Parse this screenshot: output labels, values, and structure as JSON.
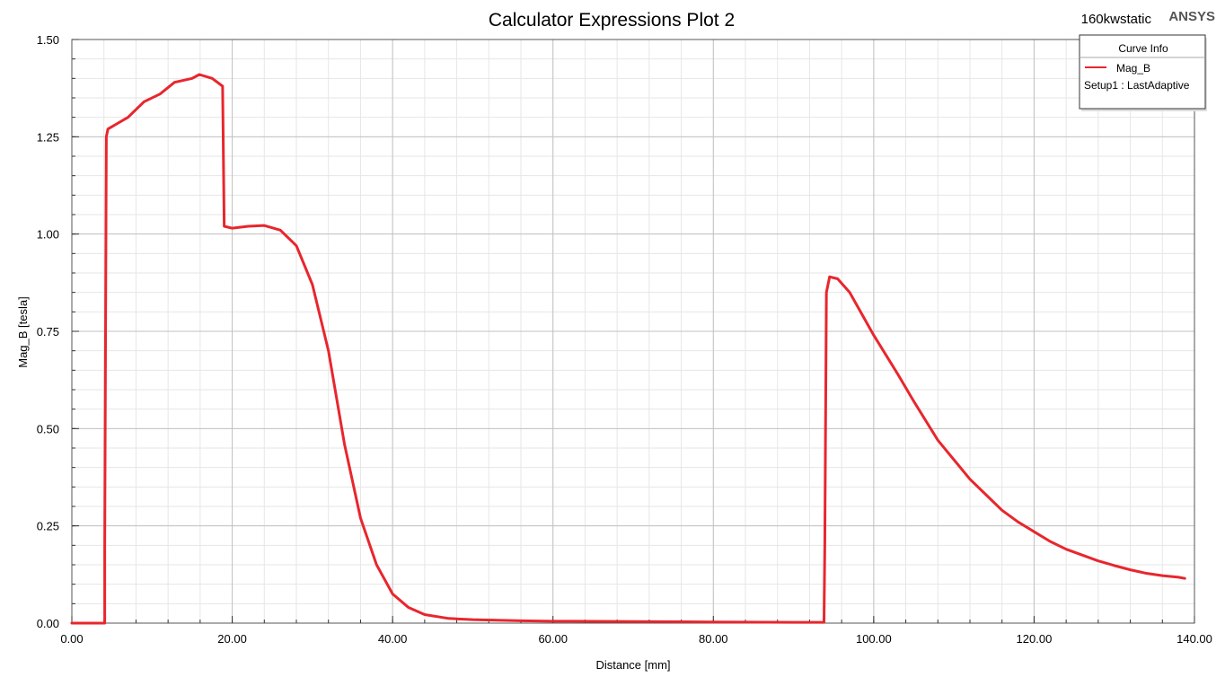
{
  "header": {
    "project_name": "160kwstatic",
    "brand": "ANSYS"
  },
  "legend": {
    "title": "Curve Info",
    "entries": [
      {
        "name": "Mag_B",
        "sub": "Setup1 : LastAdaptive",
        "color": "#e8262d"
      }
    ]
  },
  "chart_data": {
    "type": "line",
    "title": "Calculator Expressions Plot 2",
    "xlabel": "Distance [mm]",
    "ylabel": "Mag_B [tesla]",
    "xlim": [
      0,
      140
    ],
    "ylim": [
      0,
      1.5
    ],
    "x_ticks": [
      "0.00",
      "20.00",
      "40.00",
      "60.00",
      "80.00",
      "100.00",
      "120.00",
      "140.00"
    ],
    "y_ticks": [
      "0.00",
      "0.25",
      "0.50",
      "0.75",
      "1.00",
      "1.25",
      "1.50"
    ],
    "x_tick_values": [
      0,
      20,
      40,
      60,
      80,
      100,
      120,
      140
    ],
    "y_tick_values": [
      0,
      0.25,
      0.5,
      0.75,
      1.0,
      1.25,
      1.5
    ],
    "grid": true,
    "legend_position": "top-right",
    "series": [
      {
        "name": "Mag_B",
        "color": "#e8262d",
        "points": [
          [
            0,
            0
          ],
          [
            4.1,
            0
          ],
          [
            4.1,
            0.2
          ],
          [
            4.3,
            1.25
          ],
          [
            4.5,
            1.27
          ],
          [
            7,
            1.3
          ],
          [
            9,
            1.34
          ],
          [
            11,
            1.36
          ],
          [
            12.8,
            1.39
          ],
          [
            15,
            1.4
          ],
          [
            15.9,
            1.41
          ],
          [
            17.5,
            1.4
          ],
          [
            18.8,
            1.38
          ],
          [
            19.0,
            1.02
          ],
          [
            20,
            1.015
          ],
          [
            22,
            1.02
          ],
          [
            24,
            1.022
          ],
          [
            26,
            1.01
          ],
          [
            28,
            0.97
          ],
          [
            30,
            0.87
          ],
          [
            32,
            0.7
          ],
          [
            34,
            0.46
          ],
          [
            36,
            0.27
          ],
          [
            38,
            0.15
          ],
          [
            40,
            0.075
          ],
          [
            42,
            0.04
          ],
          [
            44,
            0.022
          ],
          [
            47,
            0.012
          ],
          [
            50,
            0.009
          ],
          [
            56,
            0.006
          ],
          [
            60,
            0.005
          ],
          [
            70,
            0.004
          ],
          [
            80,
            0.003
          ],
          [
            90,
            0.002
          ],
          [
            93.8,
            0.002
          ],
          [
            93.9,
            0.2
          ],
          [
            94.1,
            0.85
          ],
          [
            94.5,
            0.89
          ],
          [
            95.5,
            0.885
          ],
          [
            97,
            0.85
          ],
          [
            100,
            0.74
          ],
          [
            103,
            0.64
          ],
          [
            105,
            0.57
          ],
          [
            108,
            0.47
          ],
          [
            110,
            0.42
          ],
          [
            112,
            0.37
          ],
          [
            114,
            0.33
          ],
          [
            116,
            0.29
          ],
          [
            118,
            0.26
          ],
          [
            120,
            0.235
          ],
          [
            122,
            0.21
          ],
          [
            124,
            0.19
          ],
          [
            126,
            0.175
          ],
          [
            128,
            0.16
          ],
          [
            130,
            0.148
          ],
          [
            132,
            0.137
          ],
          [
            134,
            0.128
          ],
          [
            136,
            0.122
          ],
          [
            138,
            0.118
          ],
          [
            138.8,
            0.115
          ]
        ]
      }
    ]
  }
}
